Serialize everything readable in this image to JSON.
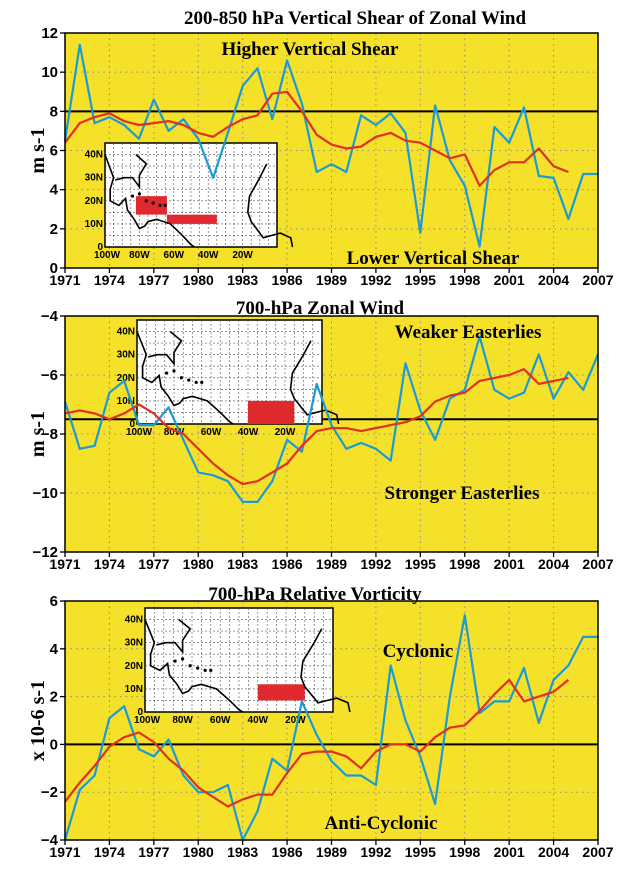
{
  "chart_data": [
    {
      "type": "line",
      "title": "200-850 hPa Vertical Shear of Zonal Wind",
      "ylabel": "m s-1",
      "ylim": [
        0,
        12
      ],
      "yticks": [
        0,
        2,
        4,
        6,
        8,
        10,
        12
      ],
      "xticks": [
        "1971",
        "1974",
        "1977",
        "1980",
        "1983",
        "1986",
        "1989",
        "1992",
        "1995",
        "1998",
        "2001",
        "2004",
        "2007"
      ],
      "xlim": [
        1971,
        2007
      ],
      "reference_line": 8,
      "grid": true,
      "background": "#f5e12a",
      "annotations": [
        "Higher Vertical Shear",
        "Lower Vertical Shear"
      ],
      "series": [
        {
          "color": "#1a9bd6",
          "x": [
            1971,
            1972,
            1973,
            1974,
            1975,
            1976,
            1977,
            1978,
            1979,
            1980,
            1981,
            1982,
            1983,
            1984,
            1985,
            1986,
            1987,
            1988,
            1989,
            1990,
            1991,
            1992,
            1993,
            1994,
            1995,
            1996,
            1997,
            1998,
            1999,
            2000,
            2001,
            2002,
            2003,
            2004,
            2005,
            2006,
            2007
          ],
          "values": [
            6.5,
            11.4,
            7.4,
            7.7,
            7.3,
            6.6,
            8.6,
            7.0,
            7.6,
            6.6,
            4.6,
            6.9,
            9.3,
            10.2,
            7.6,
            10.6,
            8.4,
            4.9,
            5.3,
            4.9,
            7.8,
            7.3,
            7.9,
            6.9,
            1.8,
            8.3,
            5.5,
            4.2,
            1.1,
            7.2,
            6.4,
            8.2,
            4.7,
            4.6,
            2.5,
            4.8,
            4.8
          ]
        },
        {
          "color": "#e0301e",
          "x": [
            1971,
            1972,
            1973,
            1974,
            1975,
            1976,
            1977,
            1978,
            1979,
            1980,
            1981,
            1982,
            1983,
            1984,
            1985,
            1986,
            1987,
            1988,
            1989,
            1990,
            1991,
            1992,
            1993,
            1994,
            1995,
            1996,
            1997,
            1998,
            1999,
            2000,
            2001,
            2002,
            2003,
            2004,
            2005
          ],
          "values": [
            6.4,
            7.4,
            7.7,
            7.9,
            7.5,
            7.3,
            7.4,
            7.5,
            7.3,
            6.9,
            6.7,
            7.2,
            7.6,
            7.8,
            8.9,
            9.0,
            8.0,
            6.8,
            6.3,
            6.1,
            6.2,
            6.7,
            6.9,
            6.5,
            6.4,
            6.0,
            5.6,
            5.8,
            4.2,
            5.0,
            5.4,
            5.4,
            6.1,
            5.2,
            4.9
          ]
        }
      ],
      "inset_map": {
        "lat_labels": [
          "40N",
          "30N",
          "20N",
          "10N",
          "0"
        ],
        "lon_labels": [
          "100W",
          "80W",
          "60W",
          "40W",
          "20W"
        ],
        "region_color": "#e0292e"
      }
    },
    {
      "type": "line",
      "title": "700-hPa Zonal Wind",
      "ylabel": "m s-1",
      "ylim": [
        -12,
        -4
      ],
      "yticks": [
        -12,
        -10,
        -8,
        -6,
        -4
      ],
      "xticks": [
        "1971",
        "1974",
        "1977",
        "1980",
        "1983",
        "1986",
        "1989",
        "1992",
        "1995",
        "1998",
        "2001",
        "2004",
        "2007"
      ],
      "xlim": [
        1971,
        2007
      ],
      "reference_line": -7.5,
      "grid": true,
      "background": "#f5e12a",
      "annotations": [
        "Weaker Easterlies",
        "Stronger Easterlies"
      ],
      "series": [
        {
          "color": "#1a9bd6",
          "x": [
            1971,
            1972,
            1973,
            1974,
            1975,
            1976,
            1977,
            1978,
            1979,
            1980,
            1981,
            1982,
            1983,
            1984,
            1985,
            1986,
            1987,
            1988,
            1989,
            1990,
            1991,
            1992,
            1993,
            1994,
            1995,
            1996,
            1997,
            1998,
            1999,
            2000,
            2001,
            2002,
            2003,
            2004,
            2005,
            2006,
            2007
          ],
          "values": [
            -6.9,
            -8.5,
            -8.4,
            -6.6,
            -6.2,
            -7.7,
            -7.7,
            -7.1,
            -8.2,
            -9.3,
            -9.4,
            -9.6,
            -10.3,
            -10.3,
            -9.6,
            -8.2,
            -8.6,
            -6.3,
            -7.7,
            -8.5,
            -8.3,
            -8.5,
            -8.9,
            -5.6,
            -7.2,
            -8.2,
            -6.8,
            -6.5,
            -4.7,
            -6.5,
            -6.8,
            -6.6,
            -5.3,
            -6.8,
            -5.9,
            -6.5,
            -5.3
          ]
        },
        {
          "color": "#e0301e",
          "x": [
            1971,
            1972,
            1973,
            1974,
            1975,
            1976,
            1977,
            1978,
            1979,
            1980,
            1981,
            1982,
            1983,
            1984,
            1985,
            1986,
            1987,
            1988,
            1989,
            1990,
            1991,
            1992,
            1993,
            1994,
            1995,
            1996,
            1997,
            1998,
            1999,
            2000,
            2001,
            2002,
            2003,
            2004,
            2005
          ],
          "values": [
            -7.3,
            -7.2,
            -7.3,
            -7.5,
            -7.3,
            -7.0,
            -7.3,
            -7.8,
            -8.0,
            -8.5,
            -9.0,
            -9.4,
            -9.7,
            -9.6,
            -9.3,
            -9.0,
            -8.4,
            -7.9,
            -7.8,
            -7.8,
            -7.9,
            -7.8,
            -7.7,
            -7.6,
            -7.4,
            -6.9,
            -6.7,
            -6.6,
            -6.2,
            -6.1,
            -6.0,
            -5.8,
            -6.3,
            -6.2,
            -6.1
          ]
        }
      ],
      "inset_map": {
        "lat_labels": [
          "40N",
          "30N",
          "20N",
          "10N",
          "0"
        ],
        "lon_labels": [
          "100W",
          "80W",
          "60W",
          "40W",
          "20W"
        ],
        "region_color": "#e0292e"
      }
    },
    {
      "type": "line",
      "title": "700-hPa Relative Vorticity",
      "ylabel": "x 10-6 s-1",
      "ylim": [
        -4,
        6
      ],
      "yticks": [
        -4,
        -2,
        0,
        2,
        4,
        6
      ],
      "xticks": [
        "1971",
        "1974",
        "1977",
        "1980",
        "1983",
        "1986",
        "1989",
        "1992",
        "1995",
        "1998",
        "2001",
        "2004",
        "2007"
      ],
      "xlim": [
        1971,
        2007
      ],
      "reference_line": 0,
      "grid": true,
      "background": "#f5e12a",
      "annotations": [
        "Cyclonic",
        "Anti-Cyclonic"
      ],
      "series": [
        {
          "color": "#1a9bd6",
          "x": [
            1971,
            1972,
            1973,
            1974,
            1975,
            1976,
            1977,
            1978,
            1979,
            1980,
            1981,
            1982,
            1983,
            1984,
            1985,
            1986,
            1987,
            1988,
            1989,
            1990,
            1991,
            1992,
            1993,
            1994,
            1995,
            1996,
            1997,
            1998,
            1999,
            2000,
            2001,
            2002,
            2003,
            2004,
            2005,
            2006,
            2007
          ],
          "values": [
            -4.0,
            -1.9,
            -1.3,
            1.1,
            1.6,
            -0.2,
            -0.5,
            0.2,
            -1.3,
            -2.0,
            -2.0,
            -1.7,
            -4.0,
            -2.8,
            -0.6,
            -1.1,
            1.8,
            0.4,
            -0.7,
            -1.3,
            -1.3,
            -1.7,
            3.3,
            1.0,
            -0.5,
            -2.5,
            2.0,
            5.4,
            1.3,
            1.8,
            1.8,
            3.2,
            0.9,
            2.7,
            3.3,
            4.5,
            4.5
          ]
        },
        {
          "color": "#e0301e",
          "x": [
            1971,
            1972,
            1973,
            1974,
            1975,
            1976,
            1977,
            1978,
            1979,
            1980,
            1981,
            1982,
            1983,
            1984,
            1985,
            1986,
            1987,
            1988,
            1989,
            1990,
            1991,
            1992,
            1993,
            1994,
            1995,
            1996,
            1997,
            1998,
            1999,
            2000,
            2001,
            2002,
            2003,
            2004,
            2005
          ],
          "values": [
            -2.4,
            -1.6,
            -0.9,
            -0.1,
            0.3,
            0.5,
            0.1,
            -0.6,
            -1.1,
            -1.8,
            -2.2,
            -2.6,
            -2.3,
            -2.1,
            -2.1,
            -1.2,
            -0.4,
            -0.3,
            -0.3,
            -0.5,
            -1.0,
            -0.3,
            0.0,
            0.0,
            -0.3,
            0.3,
            0.7,
            0.8,
            1.4,
            2.1,
            2.7,
            1.8,
            2.0,
            2.2,
            2.7
          ]
        }
      ],
      "inset_map": {
        "lat_labels": [
          "40N",
          "30N",
          "20N",
          "10N",
          "0"
        ],
        "lon_labels": [
          "100W",
          "80W",
          "60W",
          "40W",
          "20W"
        ],
        "region_color": "#e0292e"
      }
    }
  ]
}
